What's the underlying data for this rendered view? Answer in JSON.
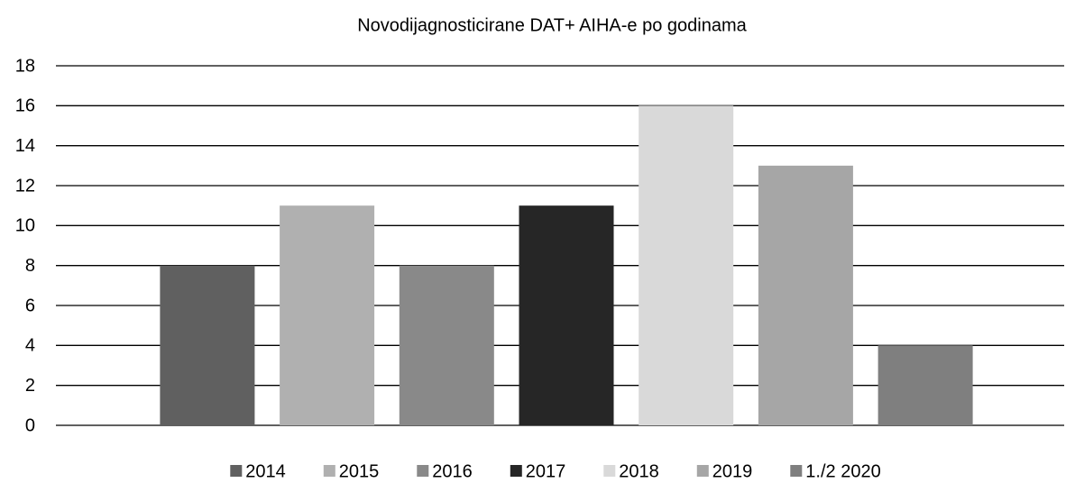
{
  "chart_data": {
    "type": "bar",
    "title": "Novodijagnosticirane DAT+ AIHA-e po godinama",
    "categories": [
      null
    ],
    "series": [
      {
        "name": "2014",
        "color": "#606060",
        "values": [
          8
        ]
      },
      {
        "name": "2015",
        "color": "#b0b0b0",
        "values": [
          11
        ]
      },
      {
        "name": "2016",
        "color": "#898989",
        "values": [
          8
        ]
      },
      {
        "name": "2017",
        "color": "#262626",
        "values": [
          11
        ]
      },
      {
        "name": "2018",
        "color": "#d9d9d9",
        "values": [
          16
        ]
      },
      {
        "name": "2019",
        "color": "#a6a6a6",
        "values": [
          13
        ]
      },
      {
        "name": "1./2 2020",
        "color": "#7f7f7f",
        "values": [
          4
        ]
      }
    ],
    "ylim": [
      0,
      18
    ],
    "yticks": [
      0,
      2,
      4,
      6,
      8,
      10,
      12,
      14,
      16,
      18
    ],
    "grid": true,
    "legend": "bottom"
  }
}
